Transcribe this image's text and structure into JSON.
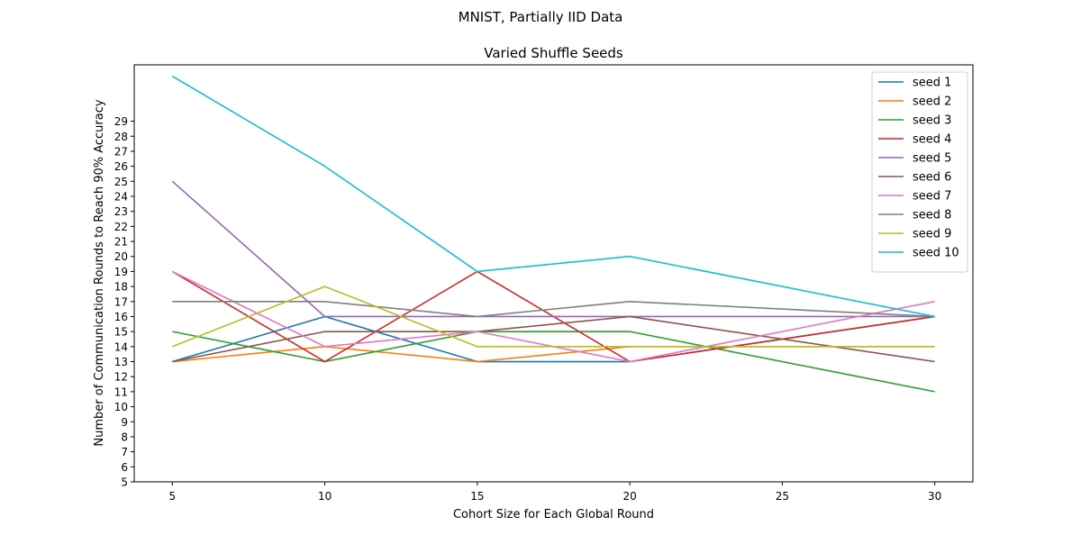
{
  "chart_data": {
    "type": "line",
    "suptitle": "MNIST, Partially IID Data",
    "title": "Varied Shuffle Seeds",
    "xlabel": "Cohort Size for Each Global Round",
    "ylabel": "Number of Communication Rounds to Reach 90% Accuracy",
    "x": [
      5,
      10,
      15,
      20,
      30
    ],
    "xticks": [
      5,
      10,
      15,
      20,
      25,
      30
    ],
    "yticks": [
      5,
      6,
      7,
      8,
      9,
      10,
      11,
      12,
      13,
      14,
      15,
      16,
      17,
      18,
      19,
      20,
      21,
      22,
      23,
      24,
      25,
      26,
      27,
      28,
      29
    ],
    "xlim": [
      3.75,
      31.25
    ],
    "ylim": [
      5,
      32.75
    ],
    "grid": false,
    "legend_position": "top-right",
    "series": [
      {
        "name": "seed 1",
        "color": "#1f77b4",
        "values": [
          13,
          16,
          13,
          13,
          16
        ]
      },
      {
        "name": "seed 2",
        "color": "#ff7f0e",
        "values": [
          13,
          14,
          13,
          14,
          14
        ]
      },
      {
        "name": "seed 3",
        "color": "#2ca02c",
        "values": [
          15,
          13,
          15,
          15,
          11
        ]
      },
      {
        "name": "seed 4",
        "color": "#d62728",
        "values": [
          19,
          13,
          19,
          13,
          16
        ]
      },
      {
        "name": "seed 5",
        "color": "#9467bd",
        "values": [
          25,
          16,
          16,
          16,
          16
        ]
      },
      {
        "name": "seed 6",
        "color": "#8c564b",
        "values": [
          13,
          15,
          15,
          16,
          13
        ]
      },
      {
        "name": "seed 7",
        "color": "#e377c2",
        "values": [
          19,
          14,
          15,
          13,
          17
        ]
      },
      {
        "name": "seed 8",
        "color": "#7f7f7f",
        "values": [
          17,
          17,
          16,
          17,
          16
        ]
      },
      {
        "name": "seed 9",
        "color": "#bcbd22",
        "values": [
          14,
          18,
          14,
          14,
          14
        ]
      },
      {
        "name": "seed 10",
        "color": "#17becf",
        "values": [
          32,
          26,
          19,
          20,
          16
        ]
      }
    ]
  }
}
